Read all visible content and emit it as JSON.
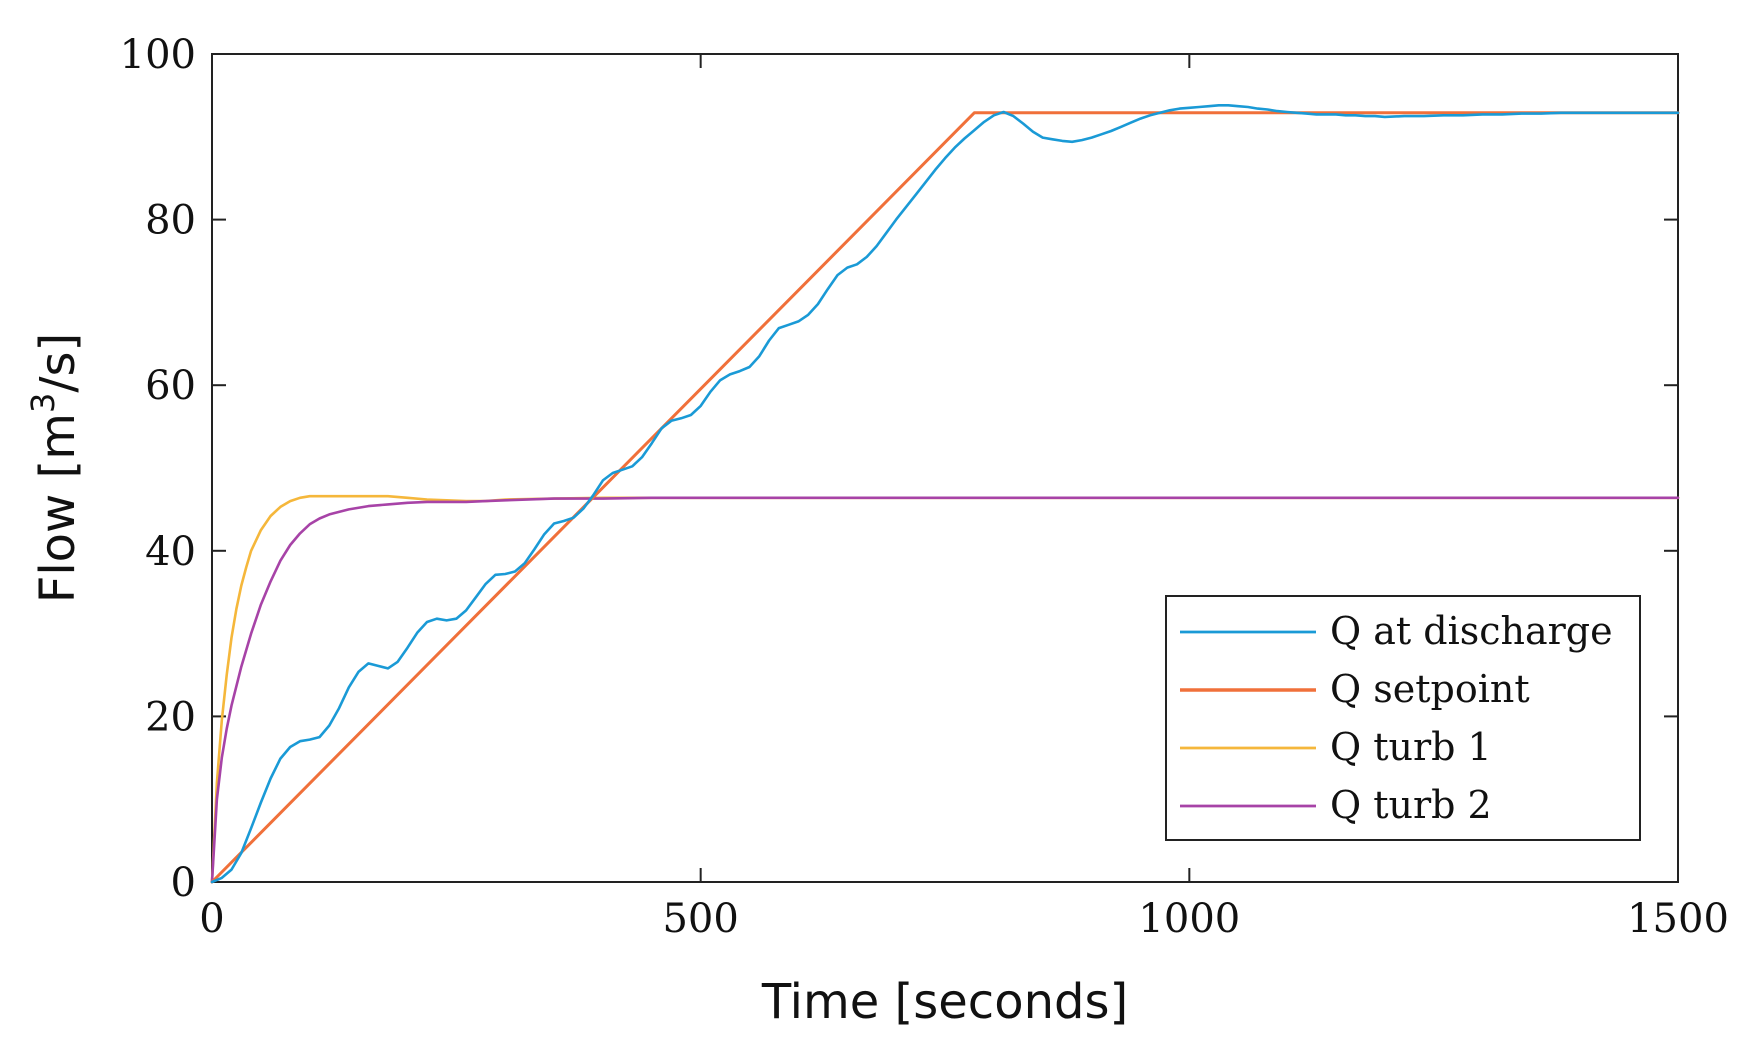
{
  "chart_data": {
    "type": "line",
    "xlabel": "Time [seconds]",
    "ylabel_prefix": "Flow [m",
    "ylabel_sup": "3",
    "ylabel_suffix": "/s]",
    "xlim": [
      0,
      1500
    ],
    "ylim": [
      0,
      100
    ],
    "x_ticks": [
      0,
      500,
      1000,
      1500
    ],
    "y_ticks": [
      0,
      20,
      40,
      60,
      80,
      100
    ],
    "x_tick_labels": [
      "0",
      "500",
      "1000",
      "1500"
    ],
    "y_tick_labels": [
      "0",
      "20",
      "40",
      "60",
      "80",
      "100"
    ],
    "grid": false,
    "legend_position": "bottom-right",
    "series": [
      {
        "name": "Q at discharge",
        "color": "#1a9ad6",
        "x": [
          0,
          10,
          20,
          30,
          40,
          50,
          60,
          70,
          80,
          90,
          100,
          110,
          120,
          130,
          140,
          150,
          160,
          170,
          180,
          190,
          200,
          210,
          220,
          230,
          240,
          250,
          260,
          270,
          280,
          290,
          300,
          310,
          320,
          330,
          340,
          350,
          360,
          370,
          380,
          390,
          400,
          410,
          420,
          430,
          440,
          450,
          460,
          470,
          480,
          490,
          500,
          510,
          520,
          530,
          540,
          550,
          560,
          570,
          580,
          590,
          600,
          610,
          620,
          630,
          640,
          650,
          660,
          670,
          680,
          690,
          700,
          710,
          720,
          730,
          740,
          750,
          760,
          770,
          780,
          790,
          800,
          810,
          820,
          830,
          840,
          850,
          860,
          870,
          880,
          890,
          900,
          910,
          920,
          930,
          940,
          950,
          960,
          970,
          980,
          990,
          1000,
          1010,
          1020,
          1030,
          1040,
          1050,
          1060,
          1070,
          1080,
          1090,
          1100,
          1110,
          1120,
          1130,
          1140,
          1150,
          1160,
          1170,
          1180,
          1190,
          1200,
          1220,
          1240,
          1260,
          1280,
          1300,
          1320,
          1340,
          1360,
          1380,
          1400,
          1420,
          1440,
          1460,
          1480,
          1500
        ],
        "y": [
          0,
          0.5,
          1.5,
          3.5,
          6.5,
          9.6,
          12.5,
          14.9,
          16.3,
          17.0,
          17.2,
          17.5,
          18.9,
          21.0,
          23.5,
          25.4,
          26.4,
          26.1,
          25.8,
          26.6,
          28.3,
          30.1,
          31.4,
          31.8,
          31.6,
          31.8,
          32.8,
          34.4,
          36.0,
          37.1,
          37.2,
          37.5,
          38.5,
          40.2,
          42.0,
          43.3,
          43.6,
          44.0,
          45.1,
          46.7,
          48.5,
          49.4,
          49.8,
          50.2,
          51.3,
          53.0,
          54.8,
          55.7,
          56.0,
          56.4,
          57.5,
          59.2,
          60.6,
          61.3,
          61.7,
          62.2,
          63.5,
          65.4,
          66.9,
          67.3,
          67.7,
          68.5,
          69.8,
          71.6,
          73.3,
          74.2,
          74.6,
          75.5,
          76.8,
          78.4,
          80.0,
          81.5,
          83.0,
          84.5,
          86.0,
          87.4,
          88.7,
          89.8,
          90.8,
          91.8,
          92.6,
          93.0,
          92.5,
          91.6,
          90.6,
          89.9,
          89.7,
          89.5,
          89.4,
          89.6,
          89.9,
          90.3,
          90.7,
          91.2,
          91.7,
          92.2,
          92.6,
          92.9,
          93.2,
          93.4,
          93.5,
          93.6,
          93.7,
          93.8,
          93.8,
          93.7,
          93.6,
          93.4,
          93.3,
          93.1,
          93.0,
          92.9,
          92.8,
          92.7,
          92.7,
          92.7,
          92.6,
          92.6,
          92.5,
          92.5,
          92.4,
          92.5,
          92.5,
          92.6,
          92.6,
          92.7,
          92.7,
          92.8,
          92.8,
          92.9,
          92.9,
          92.9,
          92.9,
          92.9,
          92.9,
          92.9
        ]
      },
      {
        "name": "Q setpoint",
        "color": "#f0703a",
        "x": [
          0,
          780,
          1500
        ],
        "y": [
          0,
          92.9,
          92.9
        ]
      },
      {
        "name": "Q turb 1",
        "color": "#f5b73b",
        "x": [
          0,
          5,
          10,
          15,
          20,
          25,
          30,
          35,
          40,
          50,
          60,
          70,
          80,
          90,
          100,
          110,
          120,
          140,
          160,
          180,
          200,
          220,
          240,
          260,
          280,
          300,
          350,
          400,
          450,
          500,
          600,
          700,
          800,
          900,
          1000,
          1100,
          1200,
          1300,
          1400,
          1500
        ],
        "y": [
          0,
          12.0,
          19.5,
          25.0,
          29.5,
          33.0,
          35.8,
          38.0,
          40.0,
          42.5,
          44.2,
          45.3,
          46.0,
          46.4,
          46.6,
          46.6,
          46.6,
          46.6,
          46.6,
          46.6,
          46.4,
          46.2,
          46.1,
          46.0,
          46.0,
          46.2,
          46.3,
          46.4,
          46.4,
          46.4,
          46.4,
          46.4,
          46.4,
          46.4,
          46.4,
          46.4,
          46.4,
          46.4,
          46.4,
          46.4
        ]
      },
      {
        "name": "Q turb 2",
        "color": "#a743a7",
        "x": [
          0,
          5,
          10,
          15,
          20,
          30,
          40,
          50,
          60,
          70,
          80,
          90,
          100,
          110,
          120,
          140,
          160,
          180,
          200,
          220,
          240,
          260,
          280,
          300,
          350,
          400,
          450,
          500,
          600,
          700,
          800,
          900,
          1000,
          1100,
          1200,
          1300,
          1400,
          1500
        ],
        "y": [
          0,
          10.0,
          15.0,
          18.5,
          21.3,
          26.0,
          30.0,
          33.5,
          36.3,
          38.8,
          40.7,
          42.1,
          43.2,
          43.9,
          44.4,
          45.0,
          45.4,
          45.6,
          45.8,
          45.9,
          45.9,
          45.9,
          46.0,
          46.1,
          46.3,
          46.3,
          46.4,
          46.4,
          46.4,
          46.4,
          46.4,
          46.4,
          46.4,
          46.4,
          46.4,
          46.4,
          46.4,
          46.4
        ]
      }
    ]
  }
}
